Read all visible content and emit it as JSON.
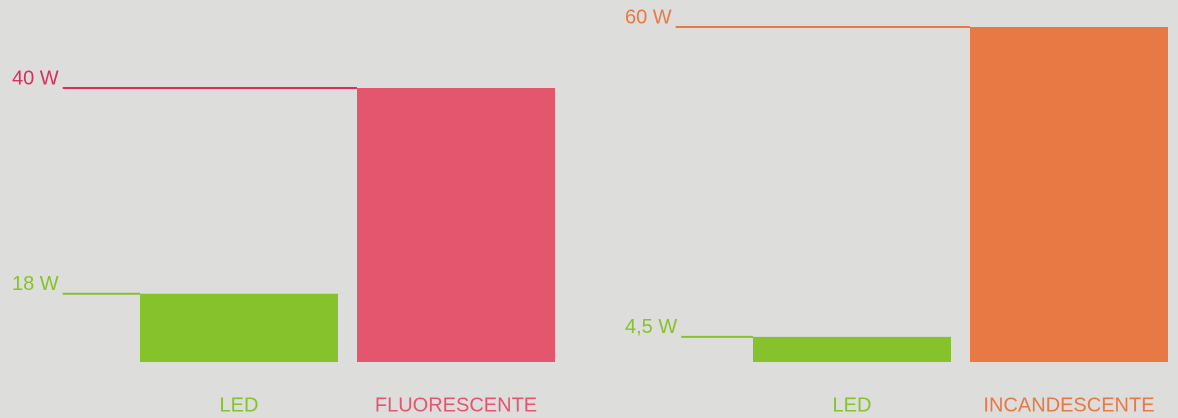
{
  "chart_data": [
    {
      "type": "bar",
      "categories": [
        "LED",
        "FLUORESCENTE"
      ],
      "values": [
        18,
        40
      ],
      "value_labels": [
        "18 W",
        "40 W"
      ],
      "colors": [
        "#86c22b",
        "#e3566e"
      ],
      "label_colors": [
        "#86c22b",
        "#d9305a"
      ],
      "ylim": [
        10.7,
        40
      ]
    },
    {
      "type": "bar",
      "categories": [
        "LED",
        "INCANDESCENTE"
      ],
      "values": [
        4.5,
        60
      ],
      "value_labels": [
        "4,5 W",
        "60 W"
      ],
      "colors": [
        "#86c22b",
        "#e87945"
      ],
      "label_colors": [
        "#86c22b",
        "#e87945"
      ],
      "ylim": [
        0,
        60
      ]
    }
  ]
}
